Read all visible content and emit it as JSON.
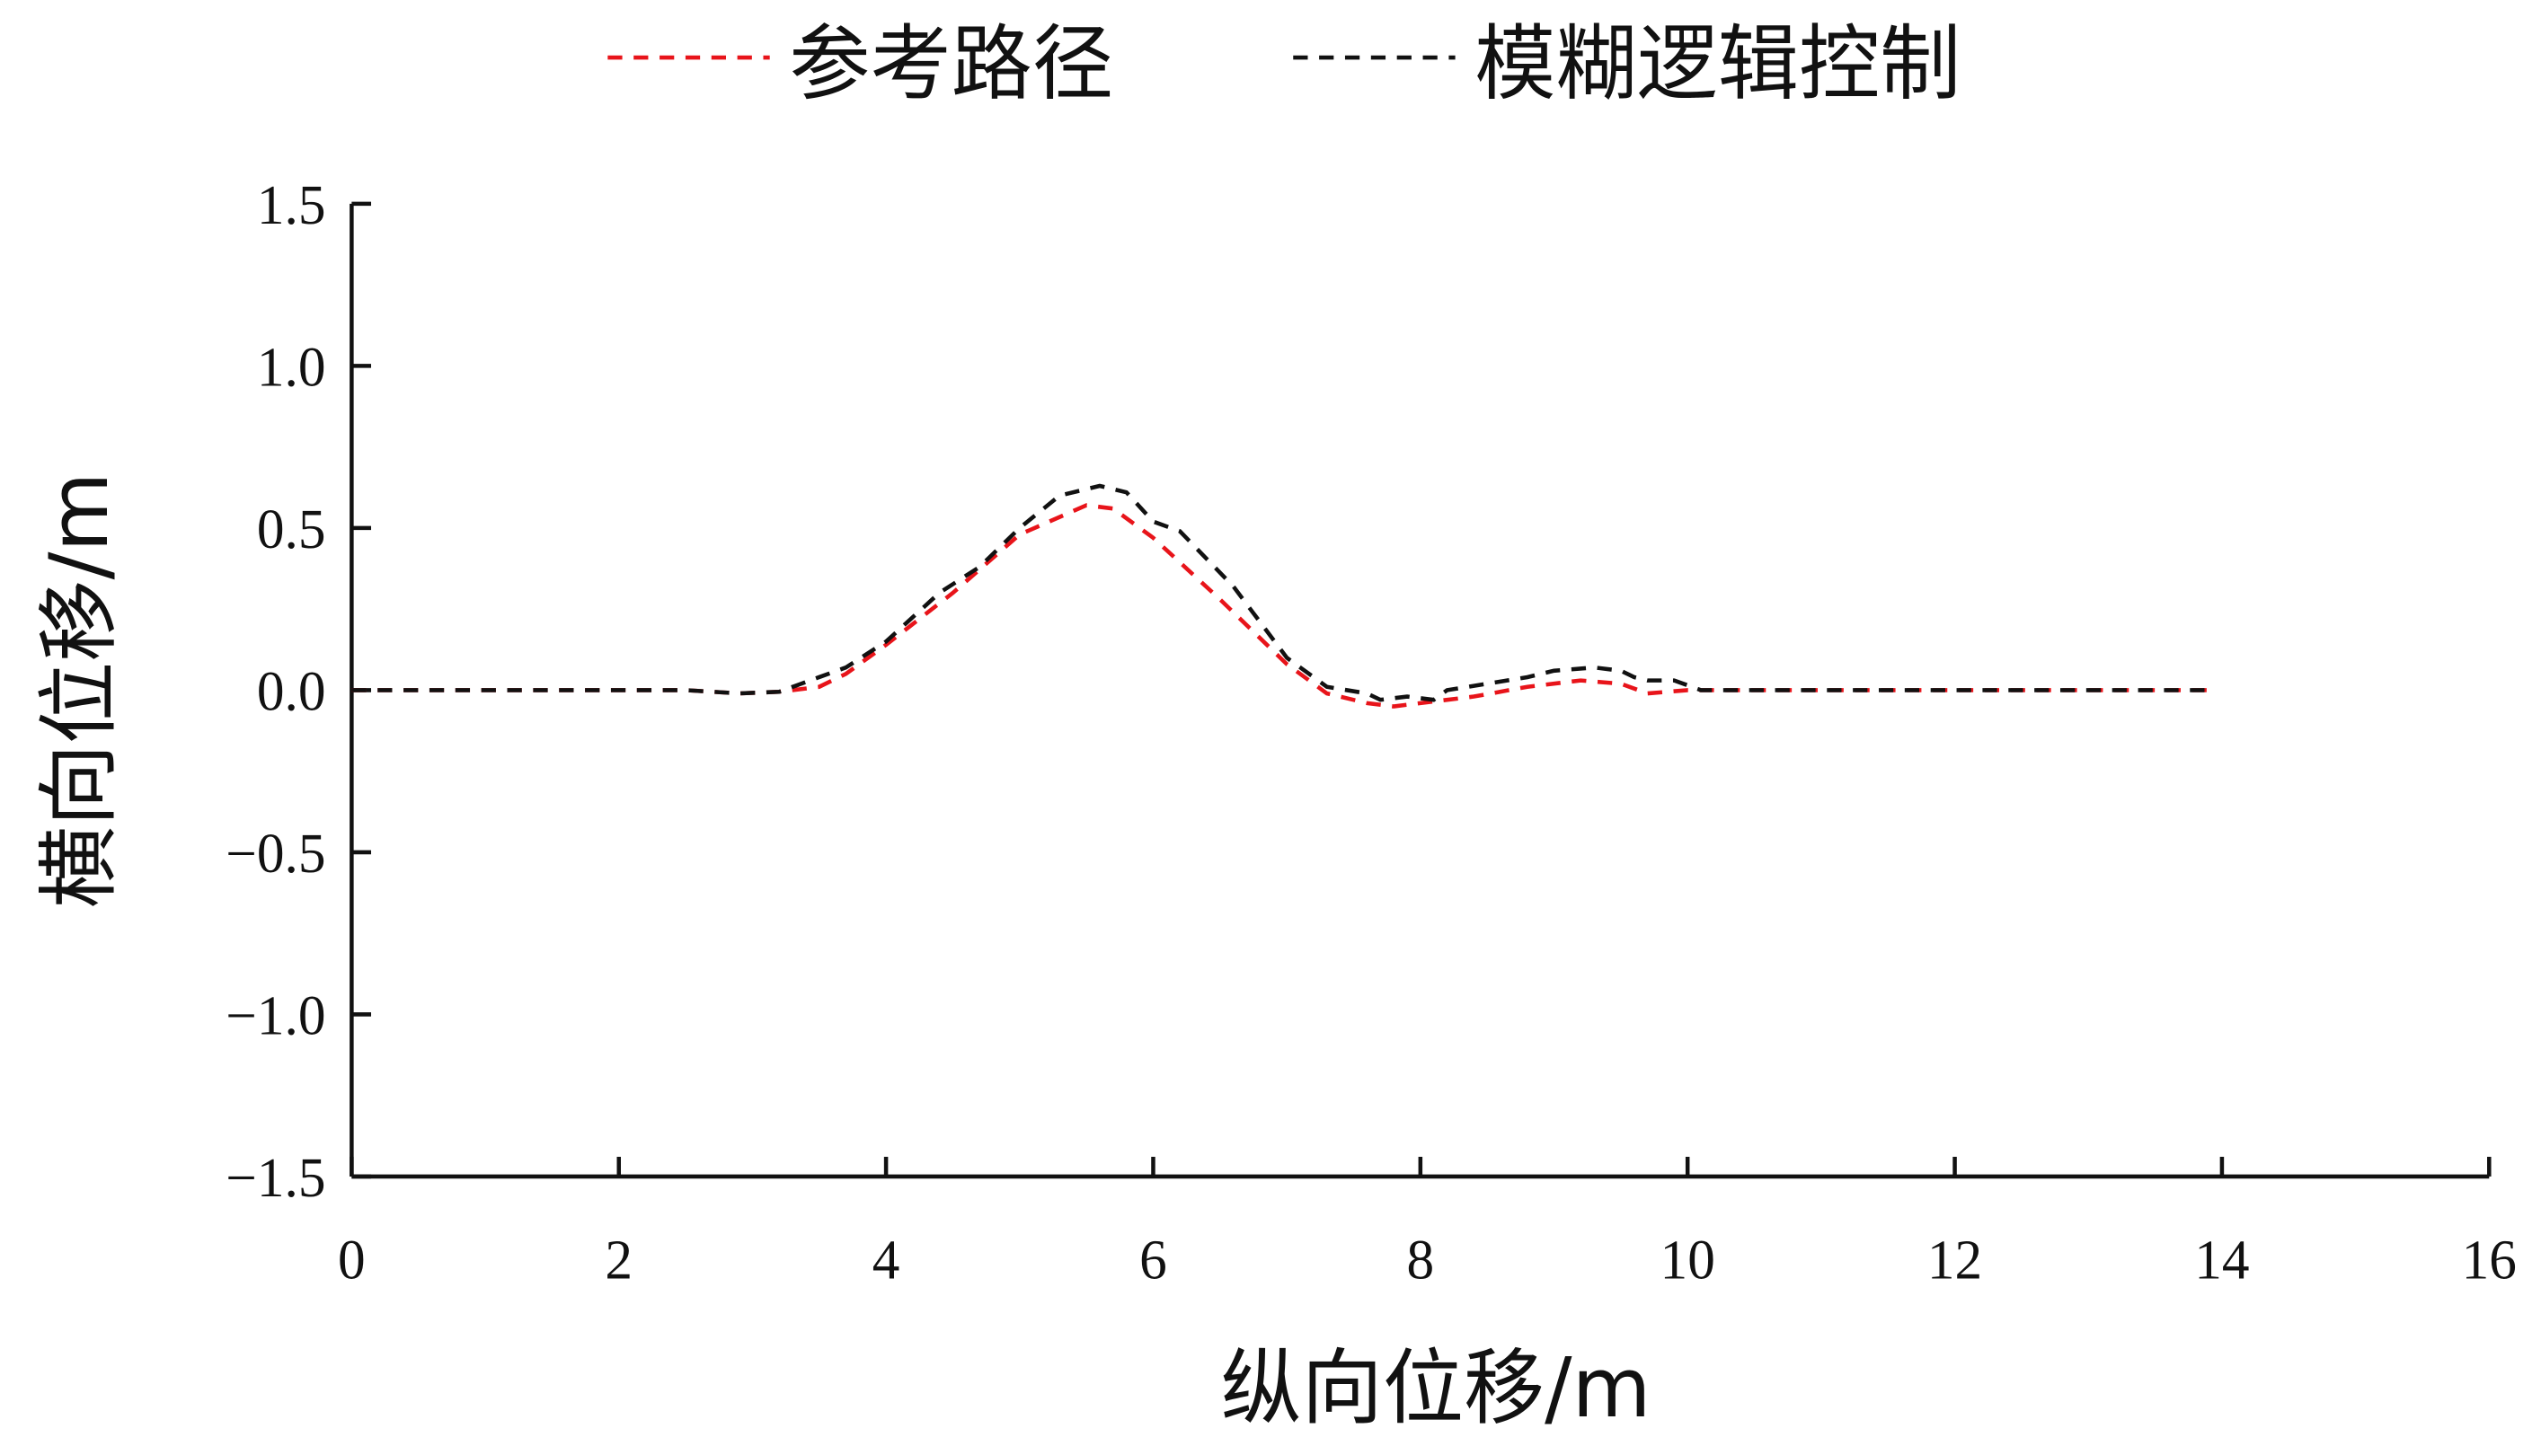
{
  "chart_data": {
    "type": "line",
    "xlabel": "纵向位移/m",
    "ylabel": "横向位移/m",
    "xlim": [
      0,
      16
    ],
    "xticks": [
      0,
      2,
      4,
      6,
      8,
      10,
      12,
      14,
      16
    ],
    "ylim": [
      -1.5,
      1.5
    ],
    "yticks": [
      {
        "value": -1.5,
        "label": "−1.5"
      },
      {
        "value": -1.0,
        "label": "−1.0"
      },
      {
        "value": -0.5,
        "label": "−0.5"
      },
      {
        "value": 0,
        "label": "0.0"
      },
      {
        "value": 0.5,
        "label": "0.5"
      },
      {
        "value": 1.0,
        "label": "1.0"
      },
      {
        "value": 1.5,
        "label": "1.5"
      }
    ],
    "grid": false,
    "legend": "top",
    "series": [
      {
        "name": "参考路径",
        "color": "#e8141a",
        "dash": true,
        "x": [
          0,
          1,
          2,
          2.5,
          2.9,
          3.2,
          3.5,
          3.7,
          4.0,
          4.5,
          5.0,
          5.5,
          5.7,
          6.0,
          6.5,
          7.0,
          7.3,
          7.6,
          7.8,
          8.0,
          8.4,
          8.8,
          9.2,
          9.5,
          9.7,
          10.0,
          12,
          13.9
        ],
        "values": [
          0,
          0,
          0,
          0,
          -0.01,
          -0.005,
          0.01,
          0.05,
          0.14,
          0.3,
          0.48,
          0.57,
          0.56,
          0.47,
          0.28,
          0.08,
          -0.01,
          -0.04,
          -0.05,
          -0.04,
          -0.02,
          0.01,
          0.03,
          0.02,
          -0.01,
          0,
          0,
          0
        ]
      },
      {
        "name": "模糊逻辑控制",
        "color": "#111111",
        "dash": true,
        "x": [
          0,
          1,
          2,
          2.5,
          2.9,
          3.2,
          3.5,
          3.7,
          4.0,
          4.4,
          4.7,
          5.0,
          5.3,
          5.6,
          5.8,
          6.0,
          6.2,
          6.6,
          7.0,
          7.3,
          7.6,
          7.7,
          7.9,
          8.1,
          8.2,
          8.5,
          8.8,
          9.0,
          9.3,
          9.5,
          9.6,
          9.7,
          9.9,
          10.1,
          12,
          13.9
        ],
        "values": [
          0,
          0,
          0,
          0,
          -0.01,
          -0.005,
          0.04,
          0.07,
          0.15,
          0.3,
          0.38,
          0.5,
          0.6,
          0.63,
          0.61,
          0.52,
          0.49,
          0.32,
          0.1,
          0.01,
          -0.01,
          -0.03,
          -0.02,
          -0.03,
          0,
          0.02,
          0.04,
          0.06,
          0.07,
          0.06,
          0.04,
          0.03,
          0.03,
          0,
          0,
          0
        ]
      }
    ]
  }
}
